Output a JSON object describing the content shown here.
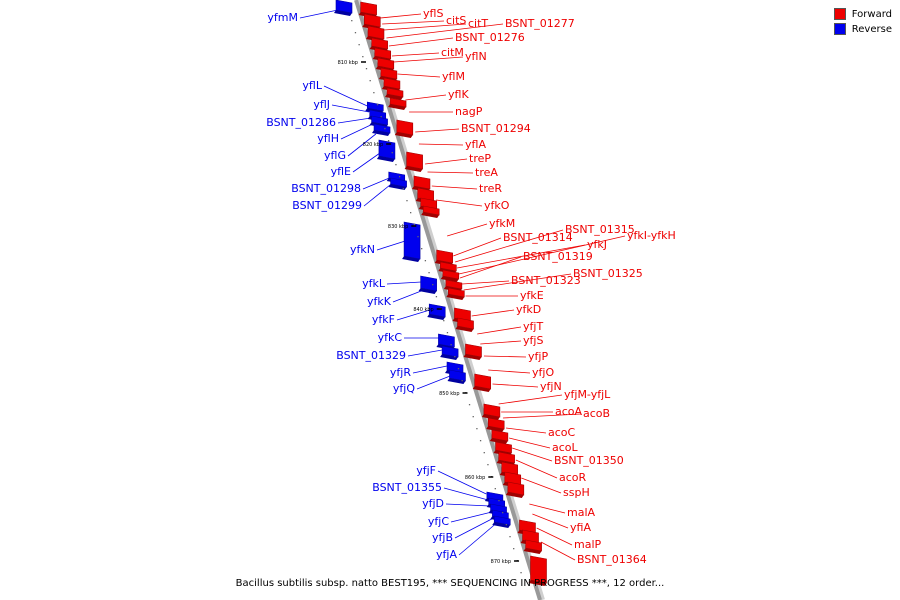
{
  "colors": {
    "forward": "#ee0000",
    "reverse": "#0000ee",
    "backbone": "#999999",
    "tick": "#000000"
  },
  "legend": [
    {
      "label": "Forward",
      "color": "#ee0000"
    },
    {
      "label": "Reverse",
      "color": "#0000ee"
    }
  ],
  "caption": "Bacillus subtilis subsp. natto BEST195, *** SEQUENCING IN PROGRESS ***, 12 order...",
  "ticks": [
    "810 kbp",
    "820 kbp",
    "830 kbp",
    "840 kbp",
    "850 kbp",
    "860 kbp",
    "870 kbp"
  ],
  "forward_labels": [
    "yflS",
    "citS",
    "citT",
    "BSNT_01277",
    "BSNT_01276",
    "citM",
    "yflN",
    "yflM",
    "yflK",
    "nagP",
    "BSNT_01294",
    "yflA",
    "treP",
    "treA",
    "treR",
    "yfkO",
    "yfkM",
    "BSNT_01314",
    "BSNT_01315",
    "yfkJ",
    "yfkI-yfkH",
    "BSNT_01319",
    "BSNT_01323",
    "BSNT_01325",
    "yfkE",
    "yfkD",
    "yfjT",
    "yfjS",
    "yfjP",
    "yfjO",
    "yfjN",
    "yfjM-yfjL",
    "acoA",
    "acoB",
    "acoC",
    "acoL",
    "BSNT_01350",
    "acoR",
    "sspH",
    "malA",
    "yfiA",
    "malP",
    "BSNT_01364"
  ],
  "reverse_labels": [
    "yfmM",
    "yflL",
    "yflJ",
    "BSNT_01286",
    "yflH",
    "yflG",
    "yflE",
    "BSNT_01298",
    "BSNT_01299",
    "yfkN",
    "yfkL",
    "yfkK",
    "yfkF",
    "yfkC",
    "BSNT_01329",
    "yfjR",
    "yfjQ",
    "yfjF",
    "BSNT_01355",
    "yfjD",
    "yfjC",
    "yfjB",
    "yfjA"
  ]
}
